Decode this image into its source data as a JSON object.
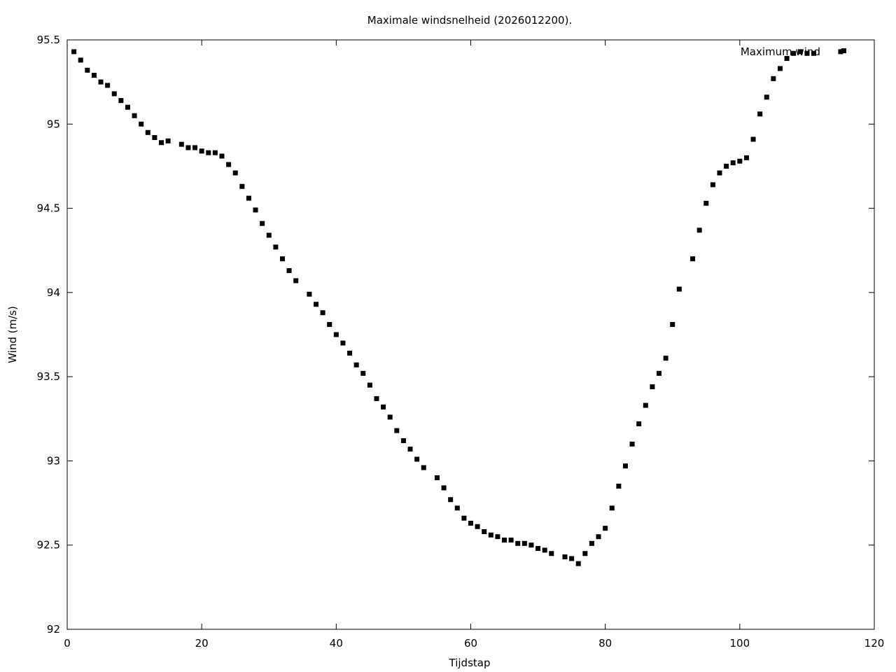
{
  "chart_data": {
    "type": "scatter",
    "title": "Maximale windsnelheid (2026012200).",
    "xlabel": "Tijdstap",
    "ylabel": "Wind (m/s)",
    "xlim": [
      0,
      120
    ],
    "ylim": [
      92,
      95.5
    ],
    "xticks": [
      0,
      20,
      40,
      60,
      80,
      100,
      120
    ],
    "xtick_labels": [
      "0",
      "20",
      "40",
      "60",
      "80",
      "100",
      "120"
    ],
    "yticks": [
      92,
      92.5,
      93,
      93.5,
      94,
      94.5,
      95,
      95.5
    ],
    "ytick_labels": [
      "92",
      "92.5",
      "93",
      "93.5",
      "94",
      "94.5",
      "95",
      "95.5"
    ],
    "grid": false,
    "legend_position": "top-right",
    "marker": "square",
    "series": [
      {
        "name": "Maximum wind",
        "color": "#000000",
        "x": [
          1,
          2,
          3,
          4,
          5,
          6,
          7,
          8,
          9,
          10,
          11,
          12,
          13,
          14,
          15,
          17,
          18,
          19,
          20,
          21,
          22,
          23,
          24,
          25,
          26,
          27,
          28,
          29,
          30,
          31,
          32,
          33,
          34,
          36,
          37,
          38,
          39,
          40,
          41,
          42,
          43,
          44,
          45,
          46,
          47,
          48,
          49,
          50,
          51,
          52,
          53,
          55,
          56,
          57,
          58,
          59,
          60,
          61,
          62,
          63,
          64,
          65,
          66,
          67,
          68,
          69,
          70,
          71,
          72,
          74,
          75,
          76,
          77,
          78,
          79,
          80,
          81,
          82,
          83,
          84,
          85,
          86,
          87,
          88,
          89,
          90,
          91,
          93,
          94,
          95,
          96,
          97,
          98,
          99,
          100,
          101,
          102,
          103,
          104,
          105,
          106,
          107,
          108,
          109,
          110,
          111,
          115
        ],
        "y": [
          95.43,
          95.38,
          95.32,
          95.29,
          95.25,
          95.23,
          95.18,
          95.14,
          95.1,
          95.05,
          95,
          94.95,
          94.92,
          94.89,
          94.9,
          94.88,
          94.86,
          94.86,
          94.84,
          94.83,
          94.83,
          94.81,
          94.76,
          94.71,
          94.63,
          94.56,
          94.49,
          94.41,
          94.34,
          94.27,
          94.2,
          94.13,
          94.07,
          93.99,
          93.93,
          93.88,
          93.81,
          93.75,
          93.7,
          93.64,
          93.57,
          93.52,
          93.45,
          93.37,
          93.32,
          93.26,
          93.18,
          93.12,
          93.07,
          93.01,
          92.96,
          92.9,
          92.84,
          92.77,
          92.72,
          92.66,
          92.63,
          92.61,
          92.58,
          92.56,
          92.55,
          92.53,
          92.53,
          92.51,
          92.51,
          92.5,
          92.48,
          92.47,
          92.45,
          92.43,
          92.42,
          92.39,
          92.45,
          92.51,
          92.55,
          92.6,
          92.72,
          92.85,
          92.97,
          93.1,
          93.22,
          93.33,
          93.44,
          93.52,
          93.61,
          93.81,
          94.02,
          94.2,
          94.37,
          94.53,
          94.64,
          94.71,
          94.75,
          94.77,
          94.78,
          94.8,
          94.91,
          95.06,
          95.16,
          95.27,
          95.33,
          95.39,
          95.42,
          95.43,
          95.42,
          95.42,
          95.43
        ]
      }
    ]
  }
}
